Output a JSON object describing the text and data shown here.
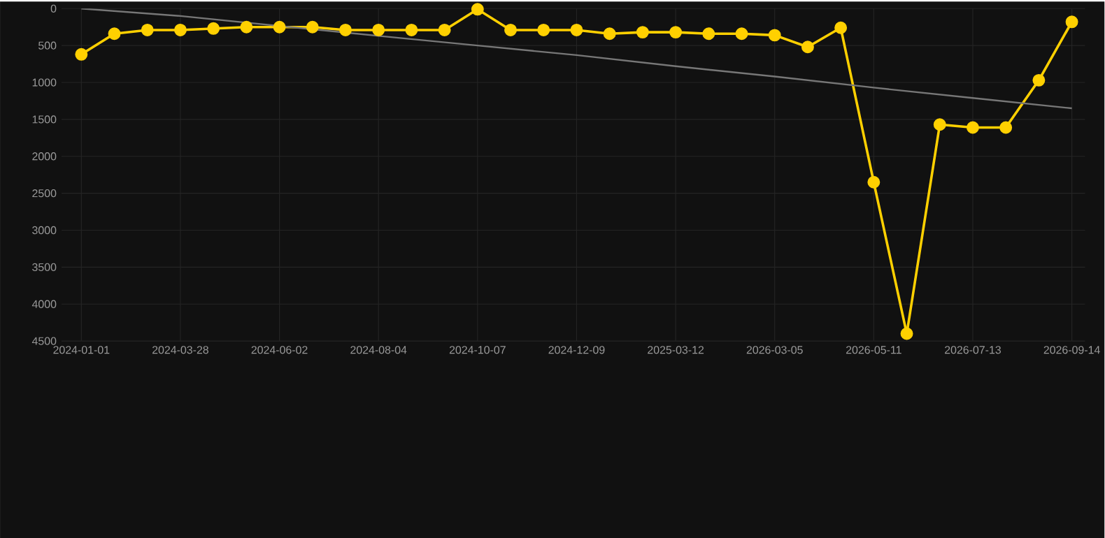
{
  "chart_data": {
    "type": "line",
    "categories": [
      "2024-01-01",
      null,
      null,
      "2024-03-28",
      null,
      null,
      "2024-06-02",
      null,
      null,
      "2024-08-04",
      null,
      null,
      "2024-10-07",
      null,
      null,
      "2024-12-09",
      null,
      null,
      "2025-03-12",
      null,
      null,
      "2026-03-05",
      null,
      null,
      "2026-05-11",
      null,
      null,
      "2026-07-13",
      null,
      null,
      "2026-09-14"
    ],
    "series": [
      {
        "color": "#ffd000",
        "marker": "circle",
        "line_style": "solid",
        "values": [
          620,
          340,
          290,
          290,
          270,
          250,
          250,
          250,
          290,
          290,
          290,
          290,
          10,
          290,
          290,
          290,
          340,
          320,
          320,
          340,
          340,
          360,
          520,
          260,
          2350,
          4400,
          1570,
          1610,
          1610,
          970,
          180
        ]
      },
      {
        "color": "#777777",
        "marker": "none",
        "line_style": "solid",
        "values": [
          0,
          null,
          null,
          100,
          null,
          null,
          null,
          null,
          null,
          370,
          null,
          null,
          500,
          null,
          null,
          630,
          null,
          null,
          780,
          null,
          null,
          920,
          null,
          null,
          1070,
          null,
          null,
          1210,
          null,
          null,
          1350
        ]
      }
    ],
    "ylim": [
      4500,
      0
    ],
    "yticks": [
      0,
      500,
      1000,
      1500,
      2000,
      2500,
      3000,
      3500,
      4000,
      4500
    ],
    "grid": true,
    "legend": false
  }
}
